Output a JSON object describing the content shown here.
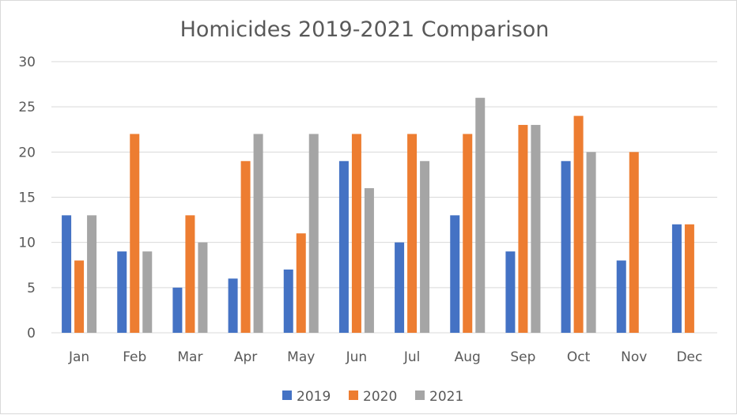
{
  "chart_data": {
    "type": "bar",
    "title": "Homicides 2019-2021 Comparison",
    "xlabel": "",
    "ylabel": "",
    "categories": [
      "Jan",
      "Feb",
      "Mar",
      "Apr",
      "May",
      "Jun",
      "Jul",
      "Aug",
      "Sep",
      "Oct",
      "Nov",
      "Dec"
    ],
    "series": [
      {
        "name": "2019",
        "color": "#4472C4",
        "values": [
          13,
          9,
          5,
          6,
          7,
          19,
          10,
          13,
          9,
          19,
          8,
          12
        ]
      },
      {
        "name": "2020",
        "color": "#ED7D31",
        "values": [
          8,
          22,
          13,
          19,
          11,
          22,
          22,
          22,
          23,
          24,
          20,
          12
        ]
      },
      {
        "name": "2021",
        "color": "#A5A5A5",
        "values": [
          13,
          9,
          10,
          22,
          22,
          16,
          19,
          26,
          23,
          20,
          null,
          null
        ]
      }
    ],
    "ylim": [
      0,
      30
    ],
    "yticks": [
      0,
      5,
      10,
      15,
      20,
      25,
      30
    ],
    "grid": true,
    "legend": "bottom"
  }
}
